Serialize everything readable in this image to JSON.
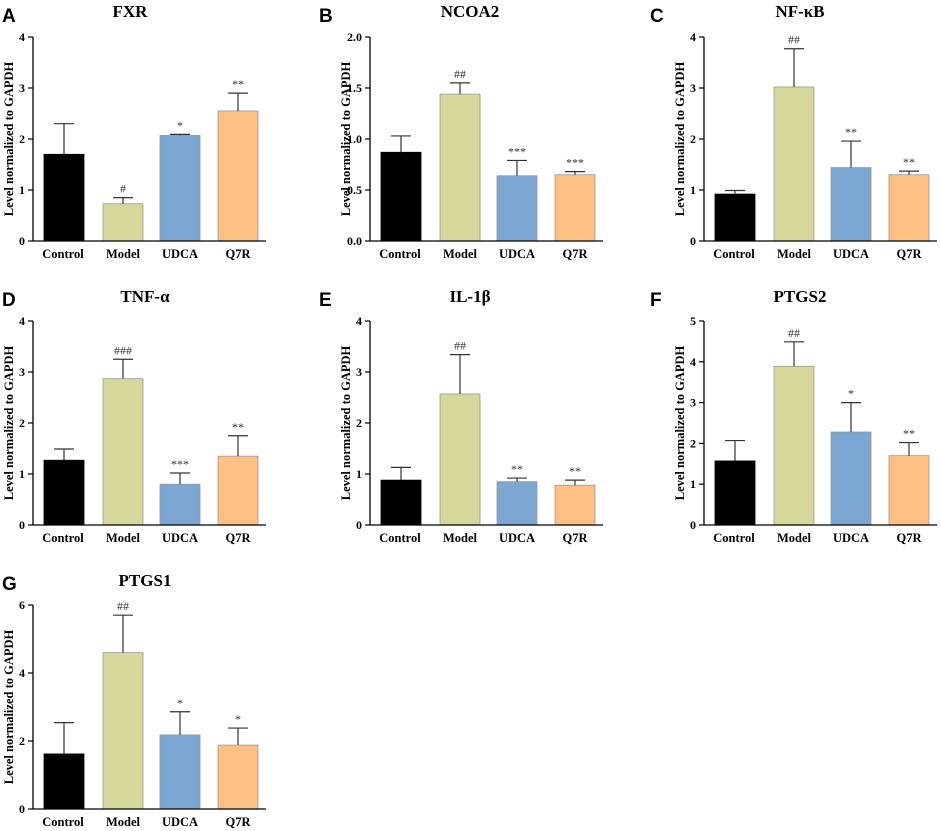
{
  "figure": {
    "categories": [
      "Control",
      "Model",
      "UDCA",
      "Q7R"
    ],
    "colors": [
      "#000000",
      "#d6d89b",
      "#7ba7d2",
      "#fec082"
    ],
    "ylabel": "Level normalized to GAPDH"
  },
  "chart_data": [
    {
      "panel": "A",
      "type": "bar",
      "title": "FXR",
      "categories": [
        "Control",
        "Model",
        "UDCA",
        "Q7R"
      ],
      "ylabel": "Level normalized to GAPDH",
      "ylim": [
        0,
        4
      ],
      "yticks": [
        "0",
        "1",
        "2",
        "3",
        "4"
      ],
      "values": [
        1.7,
        0.73,
        2.07,
        2.55
      ],
      "errors": [
        0.6,
        0.12,
        0.02,
        0.35
      ],
      "annotations": [
        "",
        "#",
        "*",
        "**"
      ]
    },
    {
      "panel": "B",
      "type": "bar",
      "title": "NCOA2",
      "categories": [
        "Control",
        "Model",
        "UDCA",
        "Q7R"
      ],
      "ylabel": "Level normalized to GAPDH",
      "ylim": [
        0,
        2
      ],
      "yticks": [
        "0.0",
        "0.5",
        "1.0",
        "1.5",
        "2.0"
      ],
      "values": [
        0.87,
        1.44,
        0.64,
        0.65
      ],
      "errors": [
        0.16,
        0.11,
        0.15,
        0.03
      ],
      "annotations": [
        "",
        "##",
        "***",
        "***"
      ]
    },
    {
      "panel": "C",
      "type": "bar",
      "title": "NF-κB",
      "categories": [
        "Control",
        "Model",
        "UDCA",
        "Q7R"
      ],
      "ylabel": "Level normalized to GAPDH",
      "ylim": [
        0,
        4
      ],
      "yticks": [
        "0",
        "1",
        "2",
        "3",
        "4"
      ],
      "values": [
        0.92,
        3.02,
        1.44,
        1.3
      ],
      "errors": [
        0.07,
        0.75,
        0.52,
        0.07
      ],
      "annotations": [
        "",
        "##",
        "**",
        "**"
      ]
    },
    {
      "panel": "D",
      "type": "bar",
      "title": "TNF-α",
      "categories": [
        "Control",
        "Model",
        "UDCA",
        "Q7R"
      ],
      "ylabel": "Level normalized to GAPDH",
      "ylim": [
        0,
        4
      ],
      "yticks": [
        "0",
        "1",
        "2",
        "3",
        "4"
      ],
      "values": [
        1.27,
        2.87,
        0.8,
        1.35
      ],
      "errors": [
        0.22,
        0.38,
        0.22,
        0.4
      ],
      "annotations": [
        "",
        "###",
        "***",
        "**"
      ]
    },
    {
      "panel": "E",
      "type": "bar",
      "title": "IL-1β",
      "categories": [
        "Control",
        "Model",
        "UDCA",
        "Q7R"
      ],
      "ylabel": "Level normalized to GAPDH",
      "ylim": [
        0,
        4
      ],
      "yticks": [
        "0",
        "1",
        "2",
        "3",
        "4"
      ],
      "values": [
        0.88,
        2.57,
        0.85,
        0.78
      ],
      "errors": [
        0.25,
        0.77,
        0.07,
        0.1
      ],
      "annotations": [
        "",
        "##",
        "**",
        "**"
      ]
    },
    {
      "panel": "F",
      "type": "bar",
      "title": "PTGS2",
      "categories": [
        "Control",
        "Model",
        "UDCA",
        "Q7R"
      ],
      "ylabel": "Level normalized to GAPDH",
      "ylim": [
        0,
        5
      ],
      "yticks": [
        "0",
        "1",
        "2",
        "3",
        "4",
        "5"
      ],
      "values": [
        1.57,
        3.89,
        2.28,
        1.7
      ],
      "errors": [
        0.5,
        0.6,
        0.72,
        0.32
      ],
      "annotations": [
        "",
        "##",
        "*",
        "**"
      ]
    },
    {
      "panel": "G",
      "type": "bar",
      "title": "PTGS1",
      "categories": [
        "Control",
        "Model",
        "UDCA",
        "Q7R"
      ],
      "ylabel": "Level normalized to GAPDH",
      "ylim": [
        0,
        6
      ],
      "yticks": [
        "0",
        "2",
        "4",
        "6"
      ],
      "values": [
        1.62,
        4.6,
        2.18,
        1.88
      ],
      "errors": [
        0.92,
        1.1,
        0.68,
        0.5
      ],
      "annotations": [
        "",
        "##",
        "*",
        "*"
      ]
    }
  ]
}
